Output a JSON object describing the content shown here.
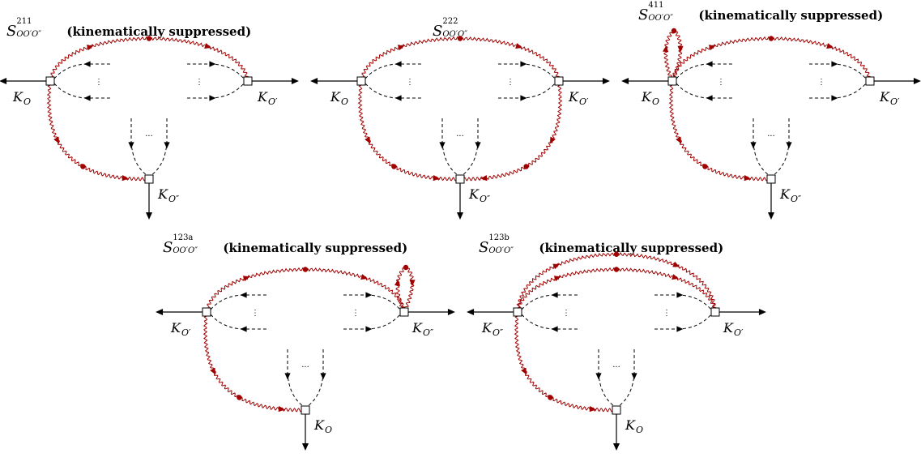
{
  "diagrams": [
    {
      "id": "S211",
      "title_symbol": "S",
      "title_sup": "211",
      "title_sub": "OO′O″",
      "title_note": "(kinematically suppressed)",
      "label_left": "K",
      "label_left_sub": "O",
      "label_right": "K",
      "label_right_sub": "O′",
      "label_bottom": "K",
      "label_bottom_sub": "O″",
      "dots_h": "⋮",
      "dots_v": "···"
    },
    {
      "id": "S222",
      "title_symbol": "S",
      "title_sup": "222",
      "title_sub": "OO′O″",
      "title_note": "",
      "label_left": "K",
      "label_left_sub": "O",
      "label_right": "K",
      "label_right_sub": "O′",
      "label_bottom": "K",
      "label_bottom_sub": "O″",
      "dots_h": "⋮",
      "dots_v": "···"
    },
    {
      "id": "S411",
      "title_symbol": "S",
      "title_sup": "411",
      "title_sub": "OO′O″",
      "title_note": "(kinematically suppressed)",
      "label_left": "K",
      "label_left_sub": "O",
      "label_right": "K",
      "label_right_sub": "O′",
      "label_bottom": "K",
      "label_bottom_sub": "O″",
      "dots_h": "⋮",
      "dots_v": "···"
    },
    {
      "id": "S123a",
      "title_symbol": "S",
      "title_sup": "123a",
      "title_sub": "OO′O″",
      "title_note": "(kinematically suppressed)",
      "label_left": "K",
      "label_left_sub": "O′",
      "label_right": "K",
      "label_right_sub": "O″",
      "label_bottom": "K",
      "label_bottom_sub": "O",
      "dots_h": "⋮",
      "dots_v": "···"
    },
    {
      "id": "S123b",
      "title_symbol": "S",
      "title_sup": "123b",
      "title_sub": "OO′O″",
      "title_note": "(kinematically suppressed)",
      "label_left": "K",
      "label_left_sub": "O″",
      "label_right": "K",
      "label_right_sub": "O′",
      "label_bottom": "K",
      "label_bottom_sub": "O",
      "dots_h": "⋮",
      "dots_v": "···"
    }
  ],
  "colors": {
    "photon": "#a00000",
    "line": "#000000"
  }
}
